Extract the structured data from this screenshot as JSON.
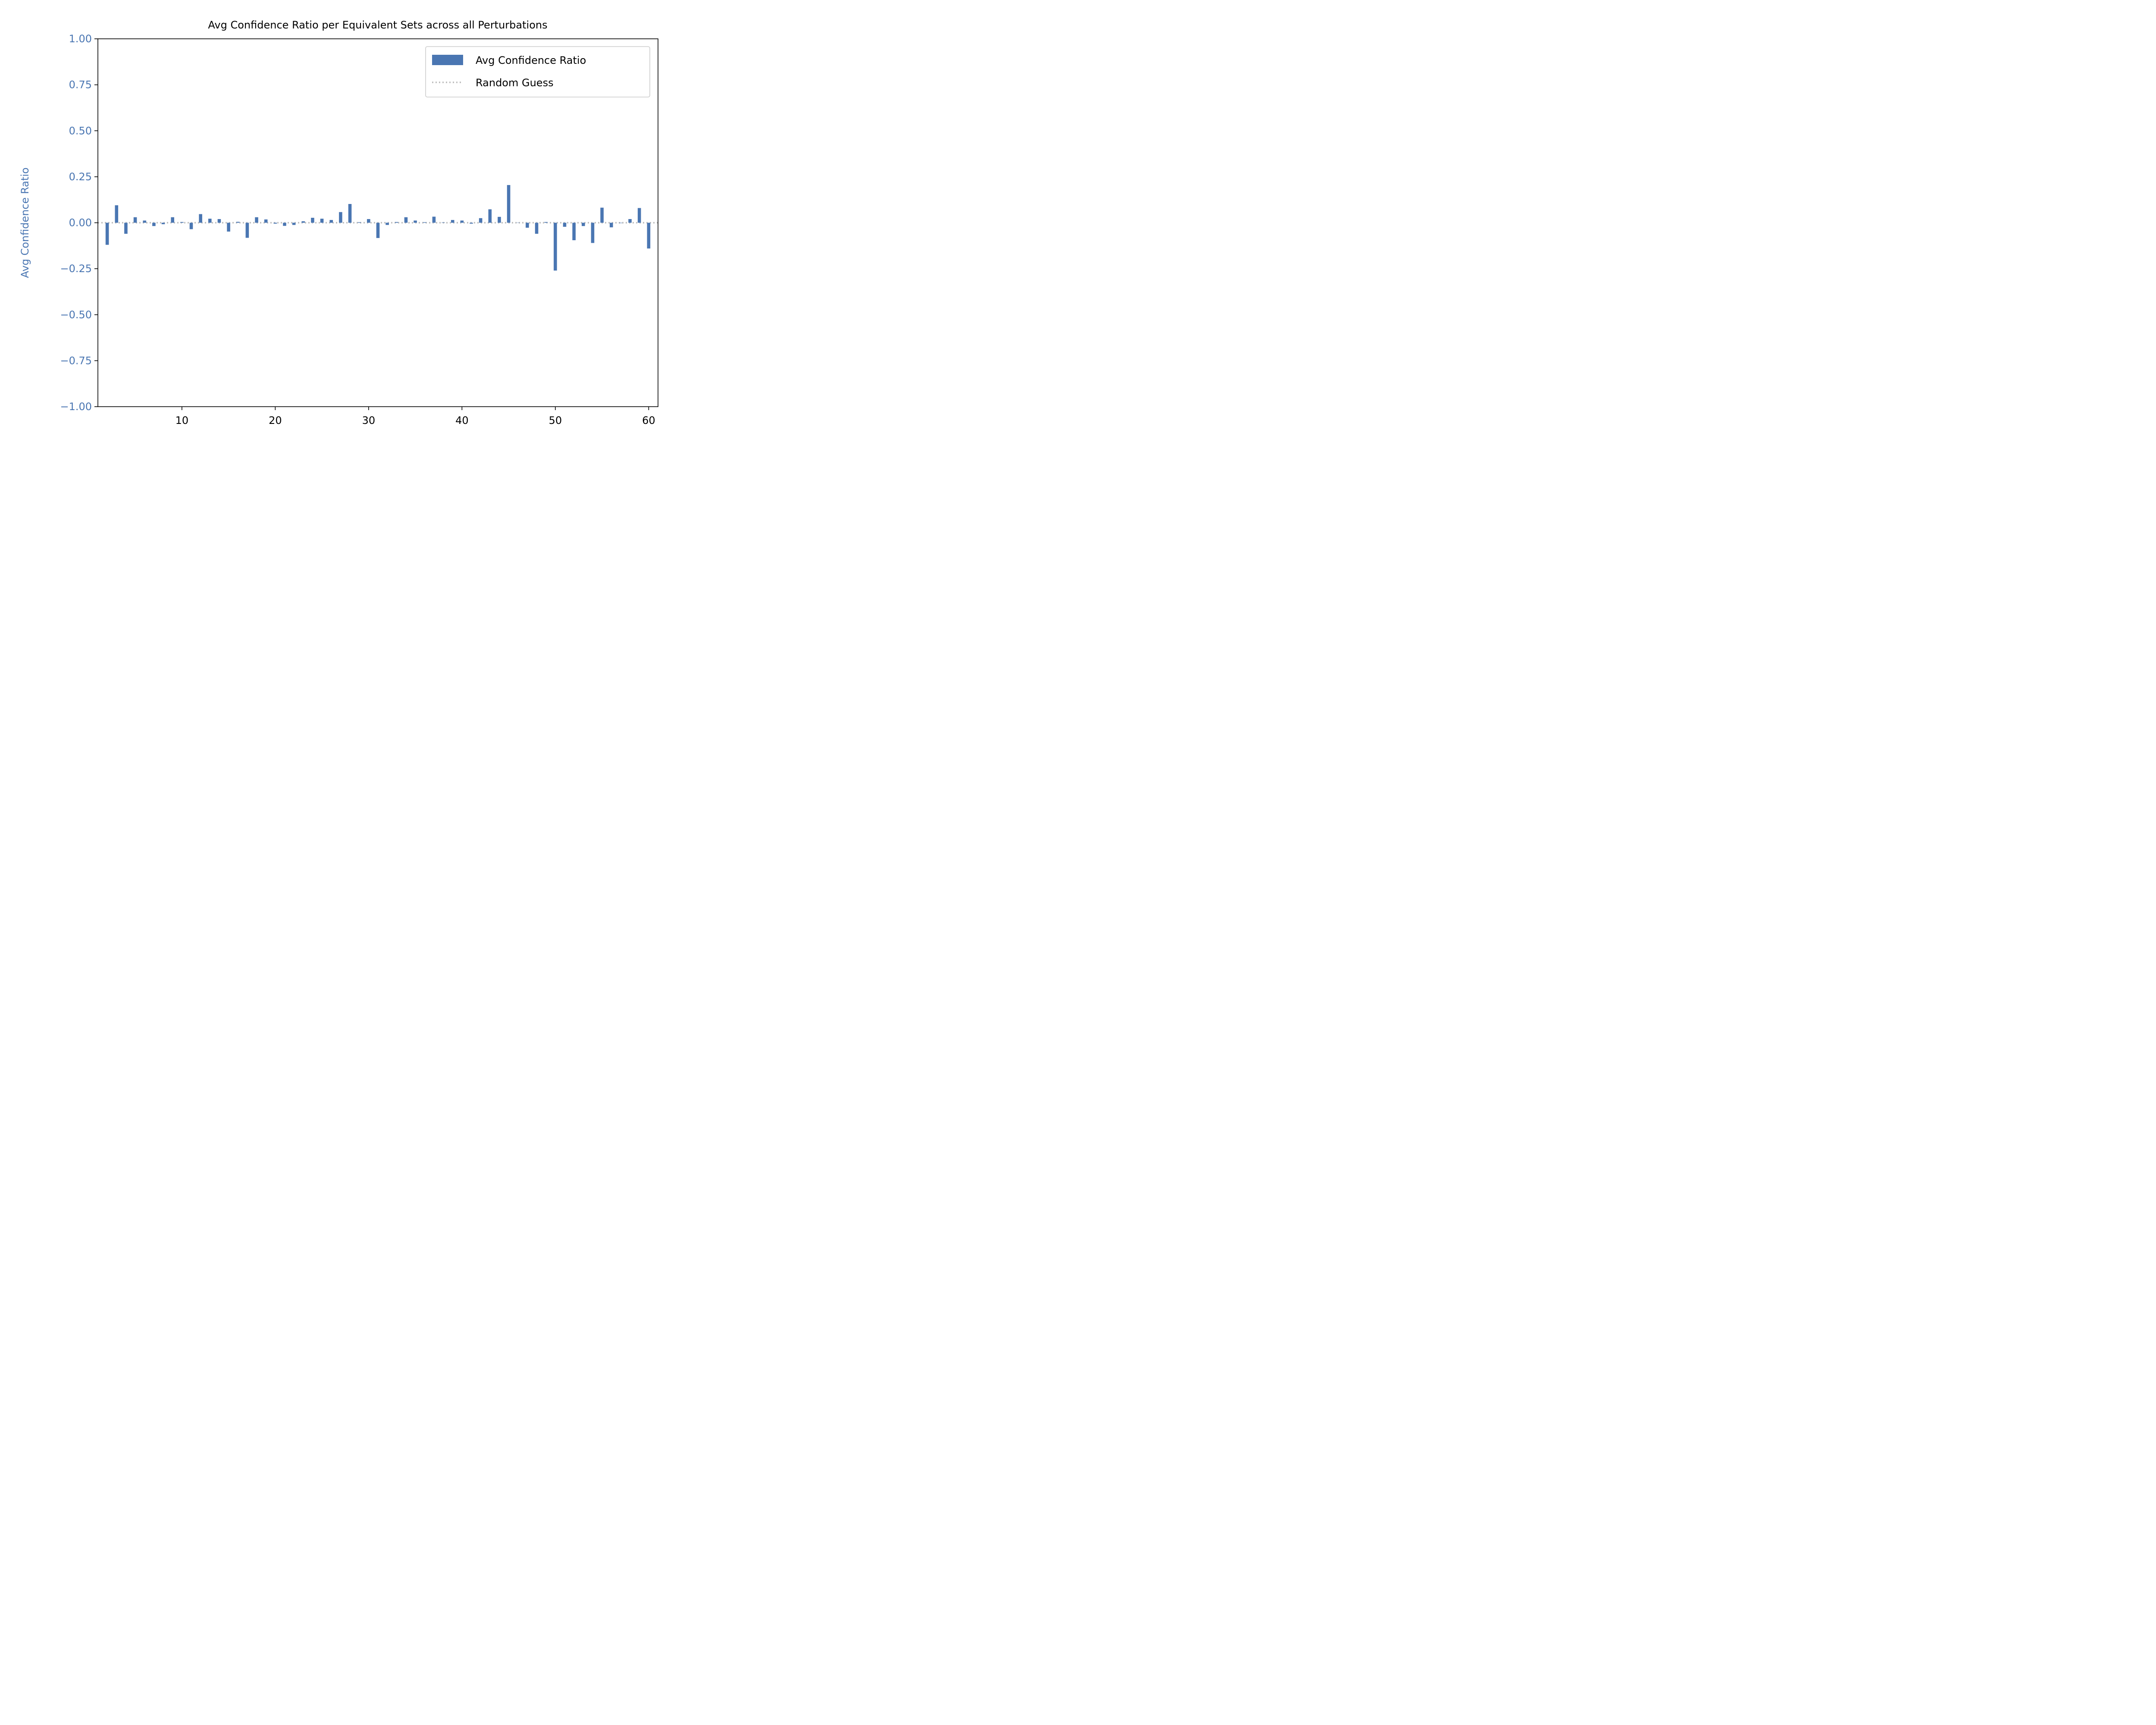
{
  "colors": {
    "bar": "#4a76b2",
    "random_line": "#bdbdbd",
    "ylabel_color": "#4a76b2",
    "axis": "#000000"
  },
  "chart_data": {
    "type": "bar",
    "title": "Avg Confidence Ratio per Equivalent Sets across all Perturbations",
    "xlabel": "",
    "ylabel": "Avg Confidence Ratio",
    "xlim": [
      1,
      61
    ],
    "ylim": [
      -1.0,
      1.0
    ],
    "xticks": [
      10,
      20,
      30,
      40,
      50,
      60
    ],
    "yticks": [
      1.0,
      0.75,
      0.5,
      0.25,
      0.0,
      -0.25,
      -0.5,
      -0.75,
      -1.0
    ],
    "ytick_labels": [
      "1.00",
      "0.75",
      "0.50",
      "0.25",
      "0.00",
      "−0.25",
      "−0.50",
      "−0.75",
      "−1.00"
    ],
    "xtick_labels": [
      "10",
      "20",
      "30",
      "40",
      "50",
      "60"
    ],
    "grid": false,
    "legend_position": "top-right",
    "series": [
      {
        "name": "Avg Confidence Ratio",
        "kind": "bar",
        "x": [
          2,
          3,
          4,
          5,
          6,
          7,
          8,
          9,
          10,
          11,
          12,
          13,
          14,
          15,
          16,
          17,
          18,
          19,
          20,
          21,
          22,
          23,
          24,
          25,
          26,
          27,
          28,
          29,
          30,
          31,
          32,
          33,
          34,
          35,
          36,
          37,
          38,
          39,
          40,
          41,
          42,
          43,
          44,
          45,
          46,
          47,
          48,
          49,
          50,
          51,
          52,
          53,
          54,
          55,
          56,
          57,
          58,
          59,
          60
        ],
        "values": [
          -0.12,
          0.095,
          -0.06,
          0.03,
          0.012,
          -0.018,
          -0.008,
          0.03,
          0.004,
          -0.035,
          0.047,
          0.022,
          0.02,
          -0.048,
          0.005,
          -0.082,
          0.03,
          0.018,
          -0.005,
          -0.017,
          -0.012,
          0.008,
          0.027,
          0.022,
          0.015,
          0.058,
          0.102,
          0.003,
          0.02,
          -0.083,
          -0.012,
          0.004,
          0.03,
          0.012,
          0.003,
          0.033,
          0.002,
          0.015,
          0.012,
          -0.005,
          0.025,
          0.073,
          0.032,
          0.205,
          0.0,
          -0.027,
          -0.06,
          0.004,
          -0.26,
          -0.022,
          -0.095,
          -0.018,
          -0.11,
          0.082,
          -0.025,
          -0.002,
          0.02,
          0.08,
          -0.14
        ]
      },
      {
        "name": "Random Guess",
        "kind": "line",
        "y": 0.0
      }
    ]
  }
}
